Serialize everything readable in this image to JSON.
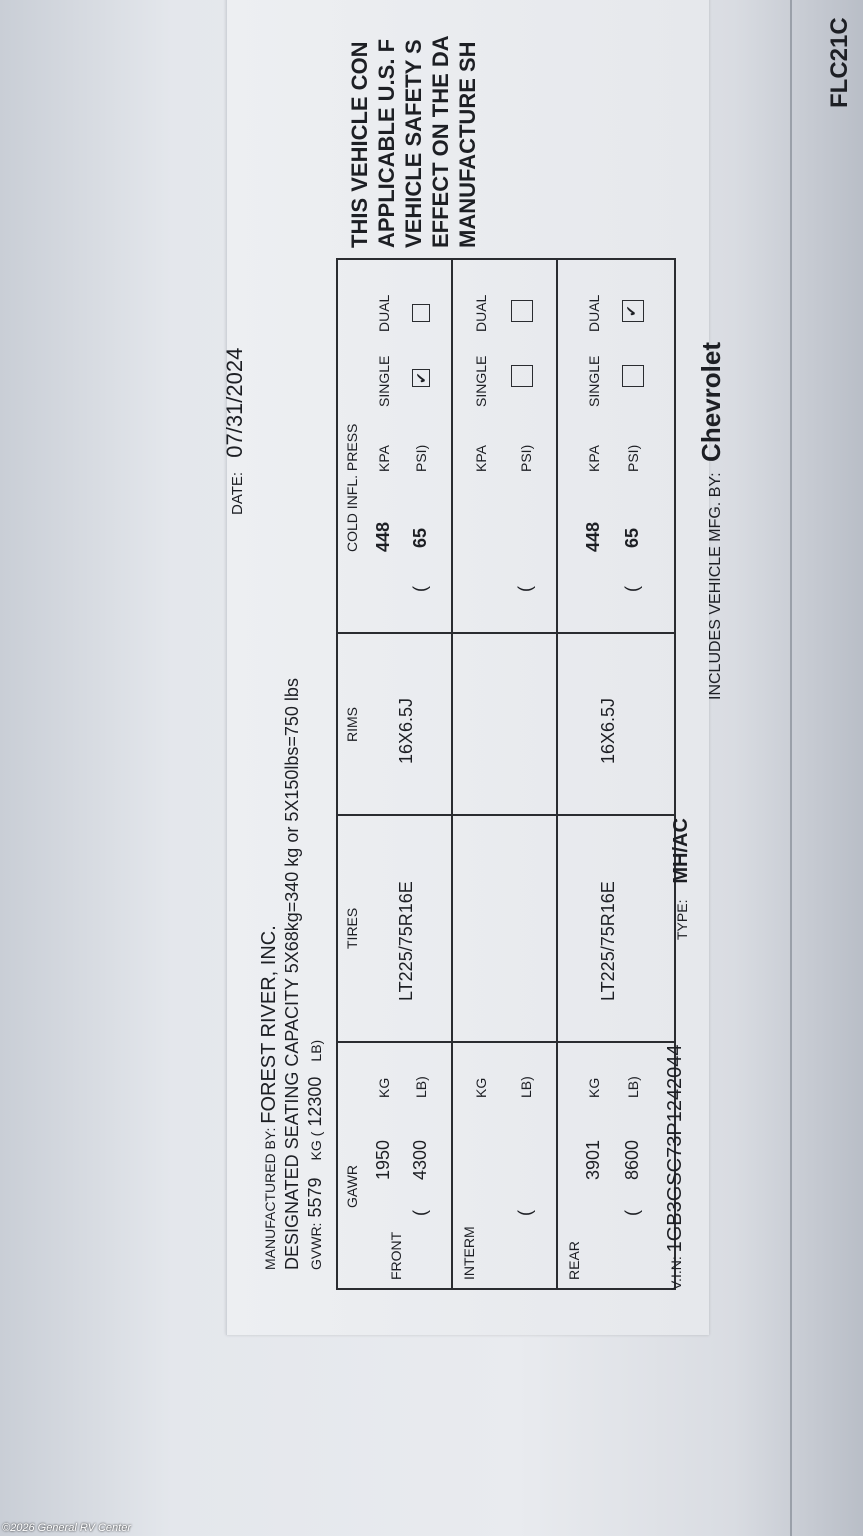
{
  "label": {
    "manufactured_by_label": "MANUFACTURED BY:",
    "manufacturer": "FOREST RIVER, INC.",
    "seating_capacity": "DESIGNATED SEATING CAPACITY 5X68kg=340 kg or 5X150lbs=750 lbs",
    "gvwr_label": "GVWR:",
    "gvwr_kg": "5579",
    "gvwr_kg_unit": "KG (",
    "gvwr_lb": "12300",
    "gvwr_lb_unit": "LB)",
    "date_label": "DATE:",
    "date": "07/31/2024",
    "compliance_lines": [
      "THIS VEHICLE CON",
      "APPLICABLE U.S. F",
      "VEHICLE SAFETY S",
      "EFFECT ON THE DA",
      "MANUFACTURE SH"
    ],
    "code": "FLC21C",
    "table": {
      "headers": {
        "gawr": "GAWR",
        "tires": "TIRES",
        "rims": "RIMS",
        "cold": "COLD INFL. PRESS"
      },
      "units": {
        "kg": "KG",
        "lb": "LB)",
        "open": "(",
        "kpa": "KPA",
        "psi": "PSI)",
        "single": "SINGLE",
        "dual": "DUAL"
      },
      "rows": [
        {
          "axle": "FRONT",
          "kg": "1950",
          "lb": "4300",
          "tire": "LT225/75R16E",
          "rim": "16X6.5J",
          "kpa": "448",
          "psi": "65",
          "single": true,
          "dual": false
        },
        {
          "axle": "INTERM",
          "kg": "",
          "lb": "",
          "tire": "",
          "rim": "",
          "kpa": "",
          "psi": "",
          "single": false,
          "dual": false
        },
        {
          "axle": "REAR",
          "kg": "3901",
          "lb": "8600",
          "tire": "LT225/75R16E",
          "rim": "16X6.5J",
          "kpa": "448",
          "psi": "65",
          "single": false,
          "dual": true
        }
      ]
    },
    "vin_label": "V.I.N:",
    "vin": "1GB3GSC73P1242044",
    "type_label": "TYPE:",
    "type": "MH/AC",
    "includes_label": "INCLUDES VEHICLE MFG. BY:",
    "chassis_mfg": "Chevrolet",
    "check_mark": "✔"
  },
  "watermark": "©2026 General RV Center"
}
